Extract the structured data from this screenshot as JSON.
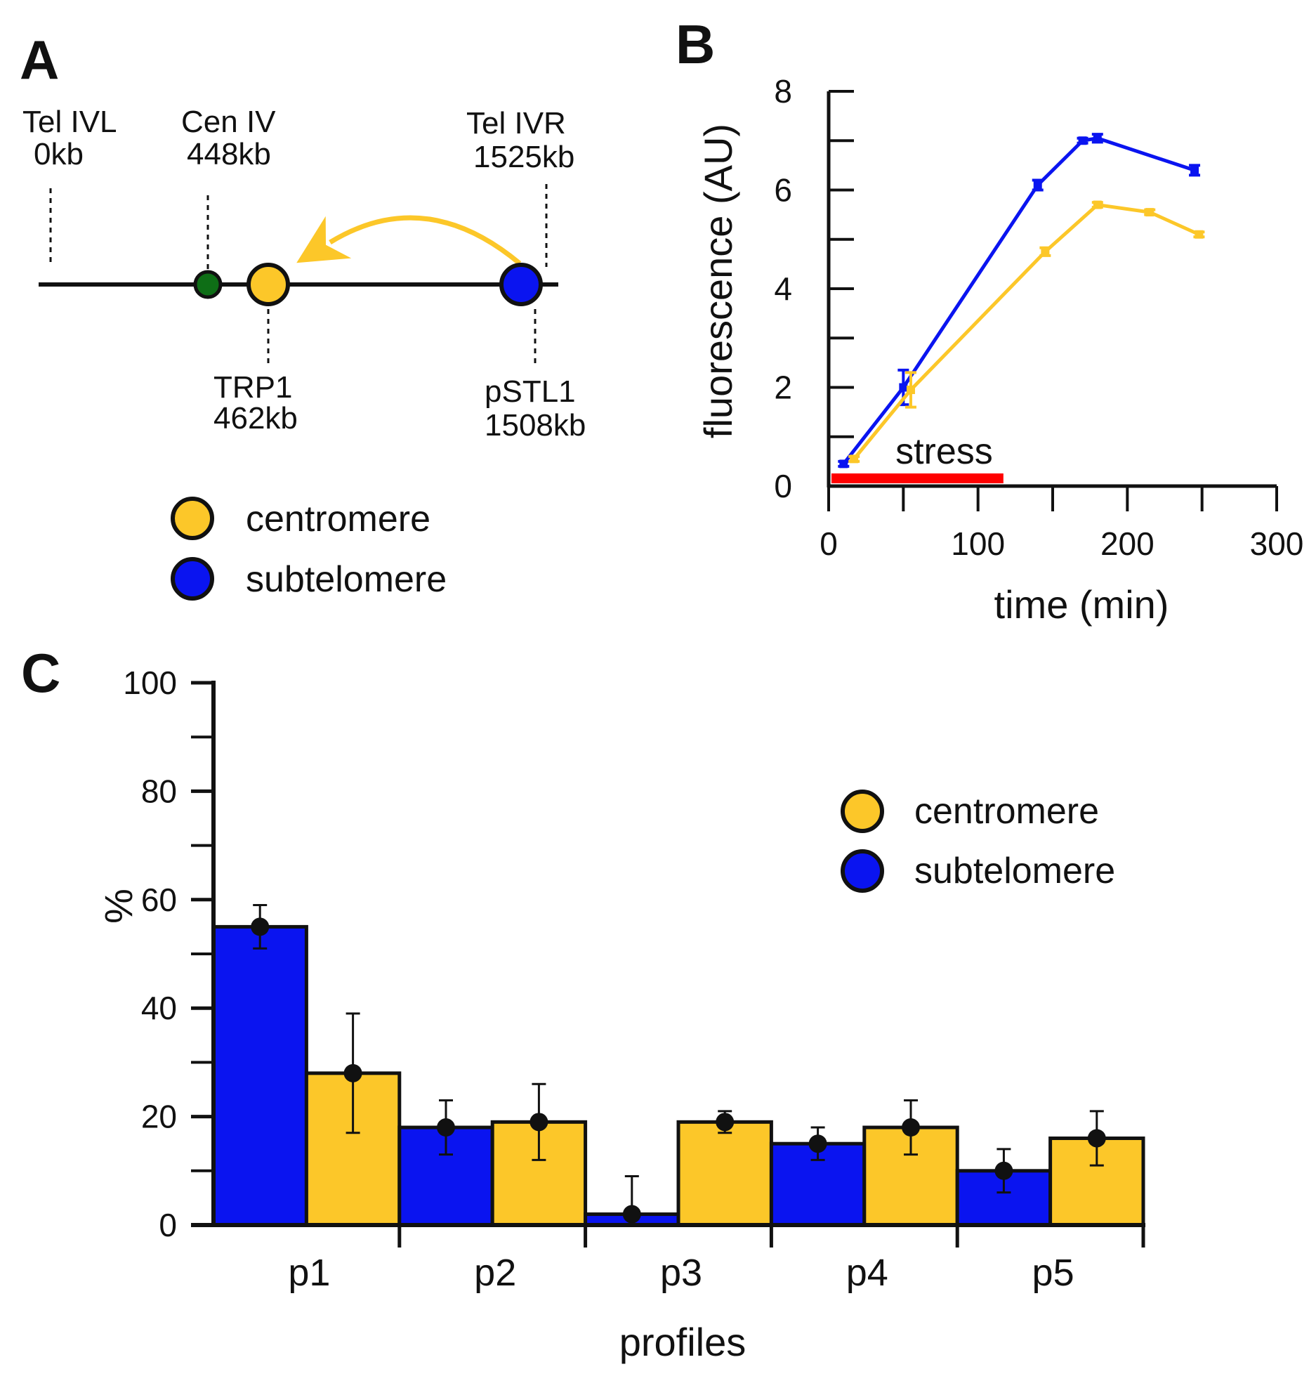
{
  "panel_a": {
    "letter": "A",
    "markers": [
      {
        "name": "Tel IVL",
        "pos": "0kb"
      },
      {
        "name": "Cen IV",
        "pos": "448kb"
      },
      {
        "name": "Tel IVR",
        "pos": "1525kb"
      },
      {
        "name": "TRP1",
        "pos": "462kb"
      },
      {
        "name": "pSTL1",
        "pos": "1508kb"
      }
    ],
    "legend": [
      {
        "label": "centromere",
        "color": "#FCC729"
      },
      {
        "label": "subtelomere",
        "color": "#0A14F0"
      }
    ],
    "colors": {
      "centromere_dot": "#0E6E16",
      "arrow": "#FCC729"
    }
  },
  "chart_data": [
    {
      "panel": "B",
      "type": "line",
      "title": "",
      "xlabel": "time (min)",
      "ylabel": "fluorescence (AU)",
      "xlim": [
        0,
        300
      ],
      "ylim": [
        0,
        8
      ],
      "xticks": [
        0,
        100,
        200,
        300
      ],
      "yticks": [
        0,
        2,
        4,
        6,
        8
      ],
      "annotation": {
        "label": "stress",
        "x_range": [
          0,
          117
        ],
        "color": "#FF0000"
      },
      "series": [
        {
          "name": "subtelomere",
          "color": "#0A14F0",
          "x": [
            10,
            50,
            140,
            170,
            180,
            245
          ],
          "y": [
            0.45,
            2.0,
            6.1,
            7.0,
            7.05,
            6.4
          ],
          "err": [
            0.05,
            0.35,
            0.1,
            0.05,
            0.08,
            0.1
          ]
        },
        {
          "name": "centromere",
          "color": "#FCC729",
          "x": [
            17,
            55,
            145,
            180,
            215,
            248
          ],
          "y": [
            0.55,
            1.95,
            4.75,
            5.7,
            5.55,
            5.1
          ],
          "err": [
            0.05,
            0.35,
            0.08,
            0.05,
            0.05,
            0.05
          ]
        }
      ]
    },
    {
      "panel": "C",
      "type": "bar",
      "title": "",
      "xlabel": "profiles",
      "ylabel": "%",
      "ylim": [
        0,
        100
      ],
      "yticks": [
        0,
        20,
        40,
        60,
        80,
        100
      ],
      "categories": [
        "p1",
        "p2",
        "p3",
        "p4",
        "p5"
      ],
      "series": [
        {
          "name": "subtelomere",
          "color": "#0A14F0",
          "values": [
            55,
            18,
            2,
            15,
            10
          ],
          "err": [
            4,
            5,
            7,
            3,
            4
          ]
        },
        {
          "name": "centromere",
          "color": "#FCC729",
          "values": [
            28,
            19,
            19,
            18,
            16
          ],
          "err": [
            11,
            7,
            2,
            5,
            5
          ]
        }
      ],
      "legend": [
        {
          "label": "centromere",
          "color": "#FCC729"
        },
        {
          "label": "subtelomere",
          "color": "#0A14F0"
        }
      ]
    }
  ],
  "letters": {
    "b": "B",
    "c": "C"
  }
}
